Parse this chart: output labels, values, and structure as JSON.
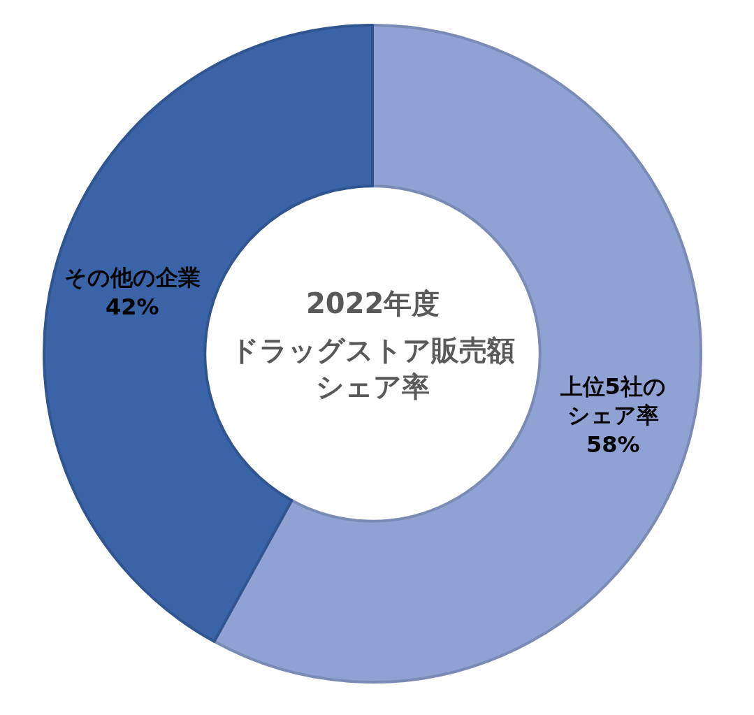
{
  "chart_data": {
    "type": "donut",
    "title": "2022年度",
    "subtitle": "ドラッグストア販売額シェア率",
    "categories": [
      "上位5社のシェア率",
      "その他の企業"
    ],
    "values": [
      58,
      42
    ],
    "colors": [
      "#8fa2d3",
      "#3a63a8"
    ],
    "value_labels": [
      "58%",
      "42%"
    ],
    "legend": false
  }
}
